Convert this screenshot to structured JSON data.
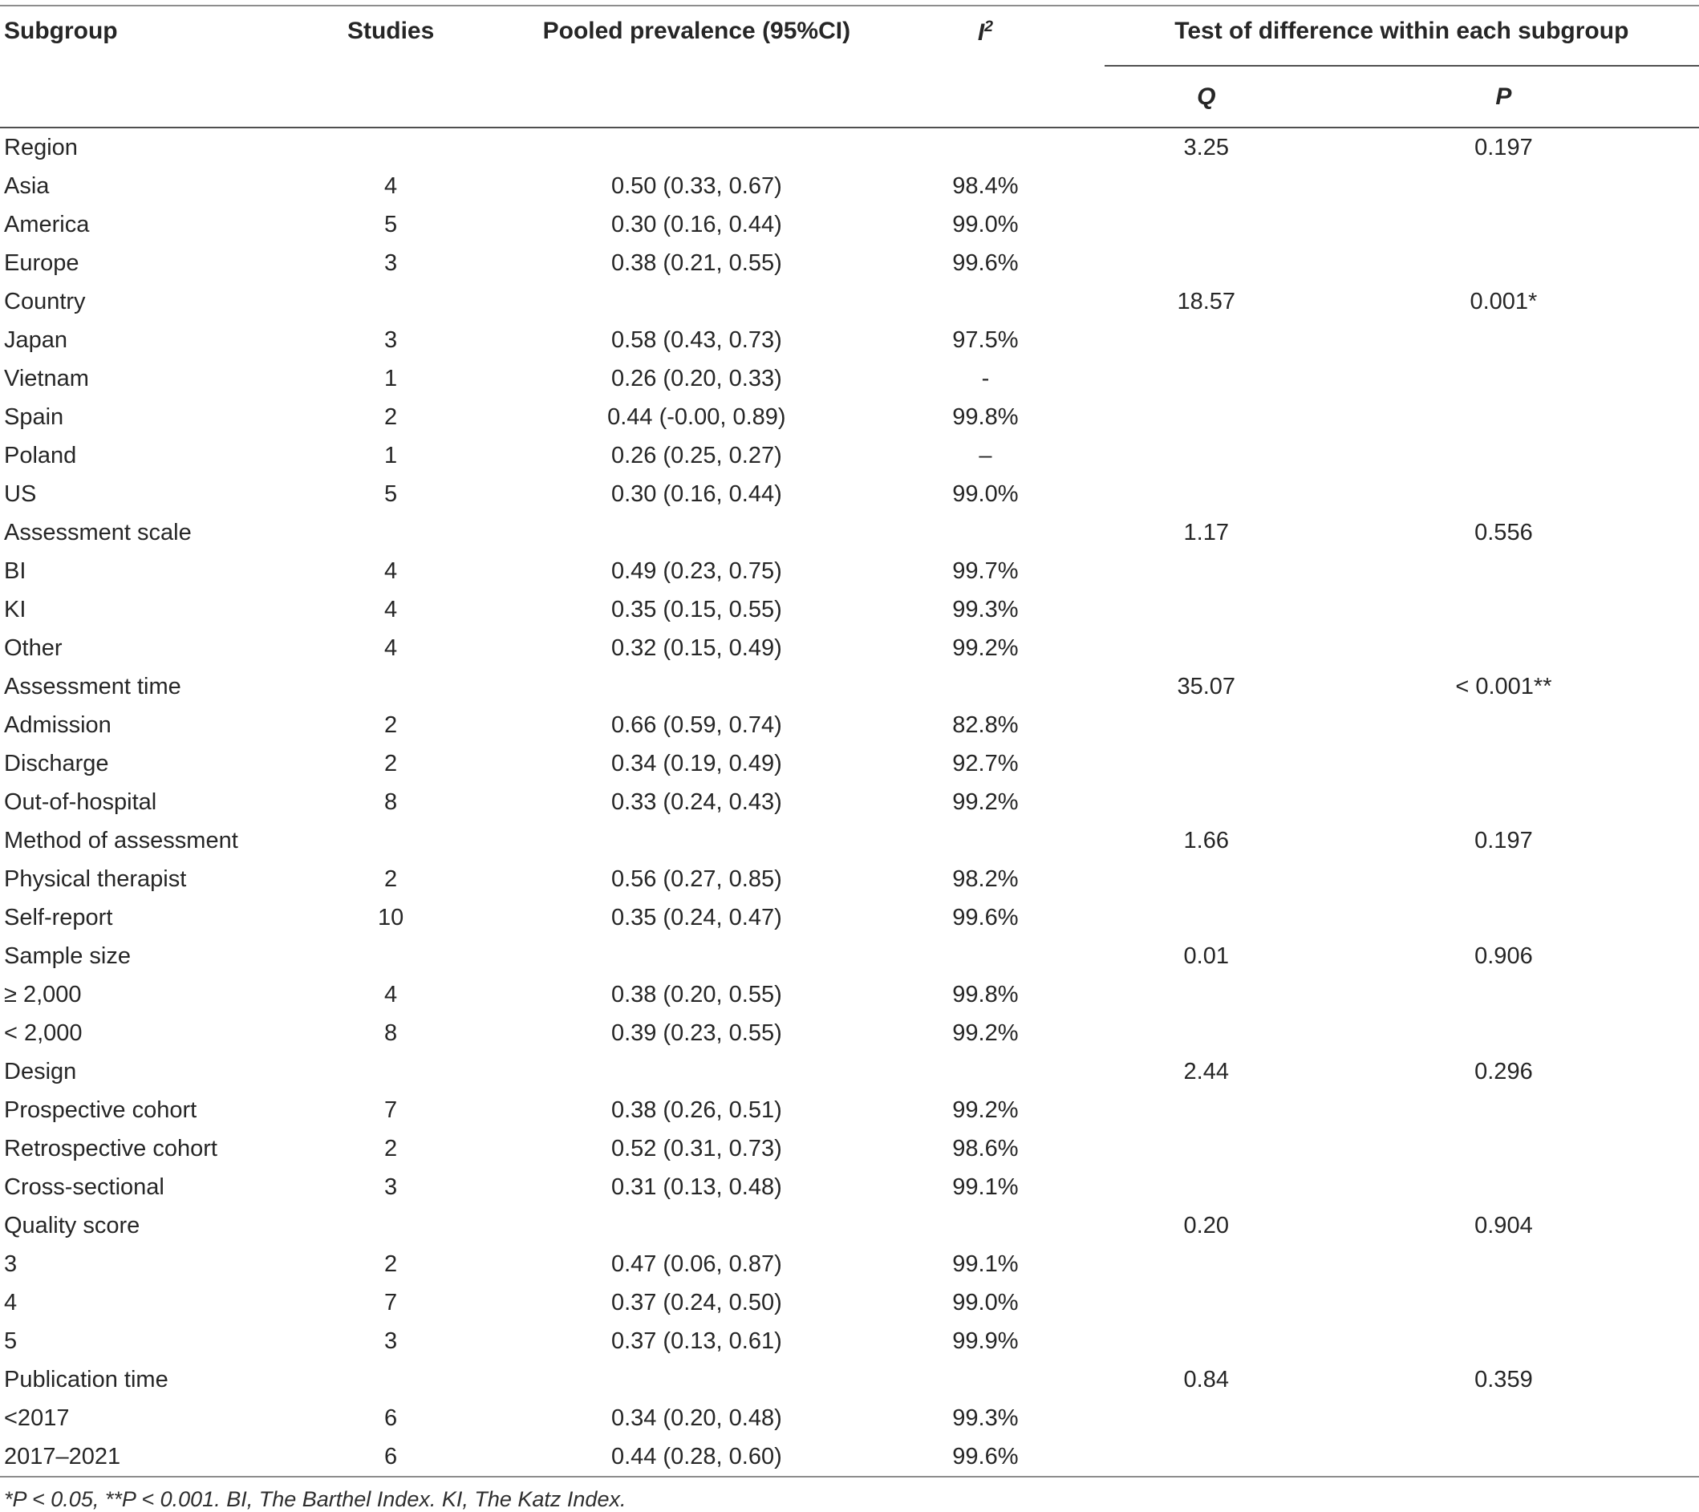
{
  "table": {
    "columns": {
      "subgroup": "Subgroup",
      "studies": "Studies",
      "pooled": "Pooled prevalence (95%CI)",
      "i2_base": "I",
      "i2_sup": "2",
      "test_header": "Test of difference within each subgroup",
      "q": "Q",
      "p": "P"
    },
    "rows": [
      {
        "label": "Region",
        "studies": "",
        "pooled": "",
        "i2": "",
        "q": "3.25",
        "p": "0.197"
      },
      {
        "label": "Asia",
        "studies": "4",
        "pooled": "0.50 (0.33, 0.67)",
        "i2": "98.4%",
        "q": "",
        "p": ""
      },
      {
        "label": "America",
        "studies": "5",
        "pooled": "0.30 (0.16, 0.44)",
        "i2": "99.0%",
        "q": "",
        "p": ""
      },
      {
        "label": "Europe",
        "studies": "3",
        "pooled": "0.38 (0.21, 0.55)",
        "i2": "99.6%",
        "q": "",
        "p": ""
      },
      {
        "label": "Country",
        "studies": "",
        "pooled": "",
        "i2": "",
        "q": "18.57",
        "p": "0.001*"
      },
      {
        "label": "Japan",
        "studies": "3",
        "pooled": "0.58 (0.43, 0.73)",
        "i2": "97.5%",
        "q": "",
        "p": ""
      },
      {
        "label": "Vietnam",
        "studies": "1",
        "pooled": "0.26 (0.20, 0.33)",
        "i2": "-",
        "q": "",
        "p": ""
      },
      {
        "label": "Spain",
        "studies": "2",
        "pooled": "0.44 (-0.00, 0.89)",
        "i2": "99.8%",
        "q": "",
        "p": ""
      },
      {
        "label": "Poland",
        "studies": "1",
        "pooled": "0.26 (0.25, 0.27)",
        "i2": "–",
        "q": "",
        "p": ""
      },
      {
        "label": "US",
        "studies": "5",
        "pooled": "0.30 (0.16, 0.44)",
        "i2": "99.0%",
        "q": "",
        "p": ""
      },
      {
        "label": "Assessment scale",
        "studies": "",
        "pooled": "",
        "i2": "",
        "q": "1.17",
        "p": "0.556"
      },
      {
        "label": "BI",
        "studies": "4",
        "pooled": "0.49 (0.23, 0.75)",
        "i2": "99.7%",
        "q": "",
        "p": ""
      },
      {
        "label": "KI",
        "studies": "4",
        "pooled": "0.35 (0.15, 0.55)",
        "i2": "99.3%",
        "q": "",
        "p": ""
      },
      {
        "label": "Other",
        "studies": "4",
        "pooled": "0.32 (0.15, 0.49)",
        "i2": "99.2%",
        "q": "",
        "p": ""
      },
      {
        "label": "Assessment time",
        "studies": "",
        "pooled": "",
        "i2": "",
        "q": "35.07",
        "p": "< 0.001**"
      },
      {
        "label": "Admission",
        "studies": "2",
        "pooled": "0.66 (0.59, 0.74)",
        "i2": "82.8%",
        "q": "",
        "p": ""
      },
      {
        "label": "Discharge",
        "studies": "2",
        "pooled": "0.34 (0.19, 0.49)",
        "i2": "92.7%",
        "q": "",
        "p": ""
      },
      {
        "label": "Out-of-hospital",
        "studies": "8",
        "pooled": "0.33 (0.24, 0.43)",
        "i2": "99.2%",
        "q": "",
        "p": ""
      },
      {
        "label": "Method of assessment",
        "studies": "",
        "pooled": "",
        "i2": "",
        "q": "1.66",
        "p": "0.197"
      },
      {
        "label": "Physical therapist",
        "studies": "2",
        "pooled": "0.56 (0.27, 0.85)",
        "i2": "98.2%",
        "q": "",
        "p": ""
      },
      {
        "label": "Self-report",
        "studies": "10",
        "pooled": "0.35 (0.24, 0.47)",
        "i2": "99.6%",
        "q": "",
        "p": ""
      },
      {
        "label": "Sample size",
        "studies": "",
        "pooled": "",
        "i2": "",
        "q": "0.01",
        "p": "0.906"
      },
      {
        "label": "≥ 2,000",
        "studies": "4",
        "pooled": "0.38 (0.20, 0.55)",
        "i2": "99.8%",
        "q": "",
        "p": ""
      },
      {
        "label": "< 2,000",
        "studies": "8",
        "pooled": "0.39 (0.23, 0.55)",
        "i2": "99.2%",
        "q": "",
        "p": ""
      },
      {
        "label": "Design",
        "studies": "",
        "pooled": "",
        "i2": "",
        "q": "2.44",
        "p": "0.296"
      },
      {
        "label": "Prospective cohort",
        "studies": "7",
        "pooled": "0.38 (0.26, 0.51)",
        "i2": "99.2%",
        "q": "",
        "p": ""
      },
      {
        "label": "Retrospective cohort",
        "studies": "2",
        "pooled": "0.52 (0.31, 0.73)",
        "i2": "98.6%",
        "q": "",
        "p": ""
      },
      {
        "label": "Cross-sectional",
        "studies": "3",
        "pooled": "0.31 (0.13, 0.48)",
        "i2": "99.1%",
        "q": "",
        "p": ""
      },
      {
        "label": "Quality score",
        "studies": "",
        "pooled": "",
        "i2": "",
        "q": "0.20",
        "p": "0.904"
      },
      {
        "label": "3",
        "studies": "2",
        "pooled": "0.47 (0.06, 0.87)",
        "i2": "99.1%",
        "q": "",
        "p": ""
      },
      {
        "label": "4",
        "studies": "7",
        "pooled": "0.37 (0.24, 0.50)",
        "i2": "99.0%",
        "q": "",
        "p": ""
      },
      {
        "label": "5",
        "studies": "3",
        "pooled": "0.37 (0.13, 0.61)",
        "i2": "99.9%",
        "q": "",
        "p": ""
      },
      {
        "label": "Publication time",
        "studies": "",
        "pooled": "",
        "i2": "",
        "q": "0.84",
        "p": "0.359"
      },
      {
        "label": "<2017",
        "studies": "6",
        "pooled": "0.34 (0.20, 0.48)",
        "i2": "99.3%",
        "q": "",
        "p": ""
      },
      {
        "label": "2017–2021",
        "studies": "6",
        "pooled": "0.44 (0.28, 0.60)",
        "i2": "99.6%",
        "q": "",
        "p": ""
      }
    ],
    "footnote": "*P < 0.05, **P < 0.001. BI, The Barthel Index. KI, The Katz Index.",
    "colors": {
      "ink": "#262626",
      "rule_outer": "#8d8d8d",
      "rule_inner": "#4f4f4f"
    }
  }
}
